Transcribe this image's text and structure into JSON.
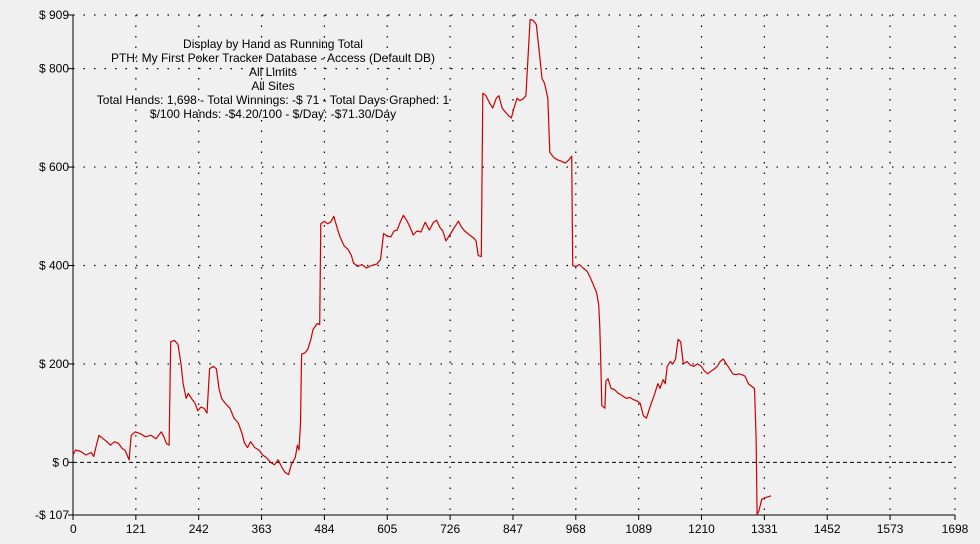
{
  "chart_data": {
    "type": "line",
    "title_lines": [
      "Display by Hand as Running Total",
      "PTH: My First Poker Tracker Database - Access (Default DB)",
      "All Limits",
      "All Sites",
      "Total Hands: 1,698 - Total Winnings: -$ 71 - Total Days Graphed: 1",
      "$/100 Hands: -$4.20/100 - $/Day: -$71.30/Day"
    ],
    "xlabel": "",
    "ylabel": "",
    "xlim": [
      0,
      1698
    ],
    "ylim": [
      -107,
      909
    ],
    "x_ticks": [
      0,
      121,
      242,
      363,
      484,
      605,
      726,
      847,
      968,
      1089,
      1210,
      1331,
      1452,
      1573,
      1698
    ],
    "y_ticks": [
      909,
      800,
      600,
      400,
      200,
      0,
      -107
    ],
    "y_tick_labels": [
      "$ 909",
      "$ 800",
      "$ 600",
      "$ 400",
      "$ 200",
      "$ 0",
      "-$ 107"
    ],
    "grid": true,
    "line_color": "#cc0000",
    "series": [
      {
        "values": [
          [
            0,
            15
          ],
          [
            5,
            25
          ],
          [
            15,
            22
          ],
          [
            25,
            15
          ],
          [
            35,
            20
          ],
          [
            40,
            12
          ],
          [
            45,
            35
          ],
          [
            50,
            55
          ],
          [
            58,
            48
          ],
          [
            65,
            42
          ],
          [
            72,
            35
          ],
          [
            80,
            42
          ],
          [
            88,
            38
          ],
          [
            95,
            28
          ],
          [
            100,
            25
          ],
          [
            108,
            5
          ],
          [
            112,
            55
          ],
          [
            120,
            62
          ],
          [
            130,
            58
          ],
          [
            140,
            52
          ],
          [
            150,
            55
          ],
          [
            160,
            48
          ],
          [
            170,
            62
          ],
          [
            175,
            52
          ],
          [
            180,
            38
          ],
          [
            185,
            35
          ],
          [
            188,
            245
          ],
          [
            195,
            248
          ],
          [
            202,
            240
          ],
          [
            208,
            200
          ],
          [
            212,
            160
          ],
          [
            218,
            130
          ],
          [
            222,
            140
          ],
          [
            228,
            130
          ],
          [
            235,
            120
          ],
          [
            240,
            105
          ],
          [
            246,
            112
          ],
          [
            252,
            110
          ],
          [
            258,
            100
          ],
          [
            263,
            190
          ],
          [
            270,
            195
          ],
          [
            276,
            190
          ],
          [
            281,
            150
          ],
          [
            286,
            130
          ],
          [
            293,
            120
          ],
          [
            302,
            110
          ],
          [
            310,
            90
          ],
          [
            318,
            80
          ],
          [
            325,
            60
          ],
          [
            330,
            40
          ],
          [
            336,
            30
          ],
          [
            342,
            42
          ],
          [
            350,
            30
          ],
          [
            358,
            25
          ],
          [
            365,
            15
          ],
          [
            372,
            10
          ],
          [
            380,
            0
          ],
          [
            388,
            -5
          ],
          [
            395,
            5
          ],
          [
            402,
            -10
          ],
          [
            408,
            -20
          ],
          [
            415,
            -25
          ],
          [
            420,
            -5
          ],
          [
            428,
            10
          ],
          [
            432,
            35
          ],
          [
            435,
            25
          ],
          [
            438,
            80
          ],
          [
            440,
            220
          ],
          [
            446,
            222
          ],
          [
            452,
            230
          ],
          [
            458,
            250
          ],
          [
            462,
            270
          ],
          [
            470,
            282
          ],
          [
            475,
            280
          ],
          [
            477,
            485
          ],
          [
            484,
            490
          ],
          [
            490,
            485
          ],
          [
            496,
            488
          ],
          [
            502,
            500
          ],
          [
            508,
            478
          ],
          [
            514,
            458
          ],
          [
            522,
            440
          ],
          [
            530,
            432
          ],
          [
            536,
            420
          ],
          [
            540,
            405
          ],
          [
            548,
            398
          ],
          [
            556,
            402
          ],
          [
            565,
            395
          ],
          [
            575,
            400
          ],
          [
            585,
            403
          ],
          [
            592,
            412
          ],
          [
            598,
            465
          ],
          [
            605,
            460
          ],
          [
            612,
            458
          ],
          [
            618,
            470
          ],
          [
            624,
            472
          ],
          [
            630,
            488
          ],
          [
            636,
            502
          ],
          [
            642,
            492
          ],
          [
            648,
            480
          ],
          [
            655,
            462
          ],
          [
            662,
            470
          ],
          [
            670,
            468
          ],
          [
            678,
            488
          ],
          [
            686,
            472
          ],
          [
            694,
            488
          ],
          [
            700,
            492
          ],
          [
            706,
            478
          ],
          [
            712,
            470
          ],
          [
            718,
            450
          ],
          [
            724,
            460
          ],
          [
            730,
            470
          ],
          [
            736,
            480
          ],
          [
            742,
            490
          ],
          [
            748,
            478
          ],
          [
            754,
            470
          ],
          [
            760,
            465
          ],
          [
            766,
            460
          ],
          [
            772,
            455
          ],
          [
            776,
            450
          ],
          [
            780,
            420
          ],
          [
            786,
            418
          ],
          [
            789,
            750
          ],
          [
            795,
            745
          ],
          [
            802,
            730
          ],
          [
            808,
            720
          ],
          [
            815,
            740
          ],
          [
            820,
            745
          ],
          [
            826,
            720
          ],
          [
            832,
            712
          ],
          [
            838,
            705
          ],
          [
            844,
            700
          ],
          [
            849,
            720
          ],
          [
            855,
            740
          ],
          [
            860,
            735
          ],
          [
            866,
            738
          ],
          [
            872,
            745
          ],
          [
            880,
            900
          ],
          [
            886,
            898
          ],
          [
            892,
            890
          ],
          [
            898,
            830
          ],
          [
            903,
            780
          ],
          [
            908,
            770
          ],
          [
            914,
            740
          ],
          [
            918,
            630
          ],
          [
            925,
            620
          ],
          [
            932,
            615
          ],
          [
            940,
            612
          ],
          [
            948,
            608
          ],
          [
            955,
            615
          ],
          [
            960,
            622
          ],
          [
            962,
            400
          ],
          [
            968,
            398
          ],
          [
            975,
            402
          ],
          [
            982,
            395
          ],
          [
            990,
            388
          ],
          [
            996,
            375
          ],
          [
            1002,
            360
          ],
          [
            1008,
            345
          ],
          [
            1012,
            320
          ],
          [
            1014,
            280
          ],
          [
            1016,
            210
          ],
          [
            1018,
            115
          ],
          [
            1024,
            110
          ],
          [
            1026,
            165
          ],
          [
            1030,
            170
          ],
          [
            1036,
            150
          ],
          [
            1042,
            148
          ],
          [
            1050,
            140
          ],
          [
            1058,
            135
          ],
          [
            1065,
            130
          ],
          [
            1072,
            132
          ],
          [
            1078,
            128
          ],
          [
            1085,
            125
          ],
          [
            1092,
            120
          ],
          [
            1098,
            95
          ],
          [
            1104,
            90
          ],
          [
            1110,
            110
          ],
          [
            1115,
            125
          ],
          [
            1120,
            140
          ],
          [
            1126,
            160
          ],
          [
            1130,
            150
          ],
          [
            1136,
            168
          ],
          [
            1140,
            160
          ],
          [
            1144,
            195
          ],
          [
            1150,
            205
          ],
          [
            1155,
            200
          ],
          [
            1160,
            210
          ],
          [
            1165,
            250
          ],
          [
            1170,
            245
          ],
          [
            1175,
            200
          ],
          [
            1182,
            205
          ],
          [
            1188,
            198
          ],
          [
            1195,
            195
          ],
          [
            1202,
            200
          ],
          [
            1210,
            195
          ],
          [
            1216,
            185
          ],
          [
            1222,
            180
          ],
          [
            1228,
            185
          ],
          [
            1235,
            190
          ],
          [
            1240,
            195
          ],
          [
            1246,
            205
          ],
          [
            1252,
            210
          ],
          [
            1258,
            200
          ],
          [
            1264,
            190
          ],
          [
            1270,
            180
          ],
          [
            1276,
            178
          ],
          [
            1282,
            180
          ],
          [
            1288,
            178
          ],
          [
            1294,
            175
          ],
          [
            1300,
            160
          ],
          [
            1306,
            155
          ],
          [
            1312,
            150
          ],
          [
            1315,
            50
          ],
          [
            1317,
            -105
          ],
          [
            1320,
            -100
          ],
          [
            1326,
            -75
          ],
          [
            1332,
            -72
          ],
          [
            1338,
            -70
          ],
          [
            1344,
            -68
          ]
        ]
      }
    ]
  }
}
